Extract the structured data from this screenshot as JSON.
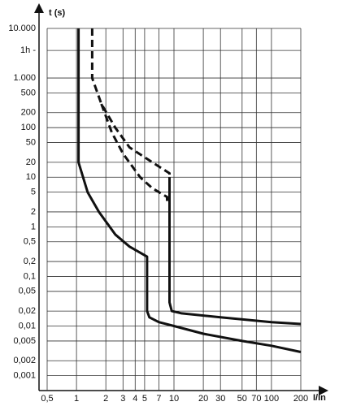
{
  "chart_data": {
    "type": "line",
    "log_x": true,
    "log_y": true,
    "grid": true,
    "y_label": "t (s)",
    "x_label": "I/In",
    "xlim": [
      0.5,
      200
    ],
    "ylim": [
      0.0005,
      10000
    ],
    "xticks": [
      {
        "value": 0.5,
        "label": "0,5"
      },
      1,
      2,
      3,
      4,
      5,
      7,
      10,
      20,
      30,
      50,
      70,
      100,
      200
    ],
    "yticks": [
      {
        "value": 10000,
        "label": "10.000"
      },
      {
        "value": 3600,
        "label": "1h -"
      },
      {
        "value": 1000,
        "label": "1.000"
      },
      500,
      200,
      100,
      50,
      20,
      10,
      5,
      2,
      1,
      {
        "value": 0.5,
        "label": "0,5"
      },
      {
        "value": 0.2,
        "label": "0,2"
      },
      {
        "value": 0.1,
        "label": "0,1"
      },
      {
        "value": 0.05,
        "label": "0,05"
      },
      {
        "value": 0.02,
        "label": "0,02"
      },
      {
        "value": 0.01,
        "label": "0,01"
      },
      {
        "value": 0.005,
        "label": "0,005"
      },
      {
        "value": 0.002,
        "label": "0,002"
      },
      {
        "value": 0.001,
        "label": "0,001"
      }
    ],
    "series": [
      {
        "color": "#111111",
        "dashed": false,
        "x": [
          1.05,
          1.05,
          1.3,
          1.7,
          2.5,
          3.5,
          5.3,
          5.3,
          5.6,
          7,
          10,
          20,
          50,
          100,
          200
        ],
        "values": [
          10000,
          20,
          5,
          2,
          0.7,
          0.4,
          0.25,
          0.02,
          0.015,
          0.012,
          0.01,
          0.007,
          0.005,
          0.004,
          0.003
        ]
      },
      {
        "color": "#111111",
        "dashed": false,
        "x": [
          9,
          9,
          9.5,
          12,
          30,
          100,
          200
        ],
        "values": [
          10,
          0.03,
          0.02,
          0.018,
          0.015,
          0.012,
          0.011
        ]
      },
      {
        "color": "#111111",
        "dashed": true,
        "x": [
          1.45,
          1.45,
          1.8,
          2.5,
          3.5,
          6,
          9,
          9
        ],
        "values": [
          10000,
          1000,
          300,
          100,
          40,
          20,
          12,
          3
        ]
      },
      {
        "color": "#111111",
        "dashed": true,
        "x": [
          1.8,
          2.3,
          3,
          4.5,
          6,
          8.5,
          8.5
        ],
        "values": [
          300,
          80,
          30,
          10,
          6,
          4,
          3
        ]
      }
    ]
  }
}
